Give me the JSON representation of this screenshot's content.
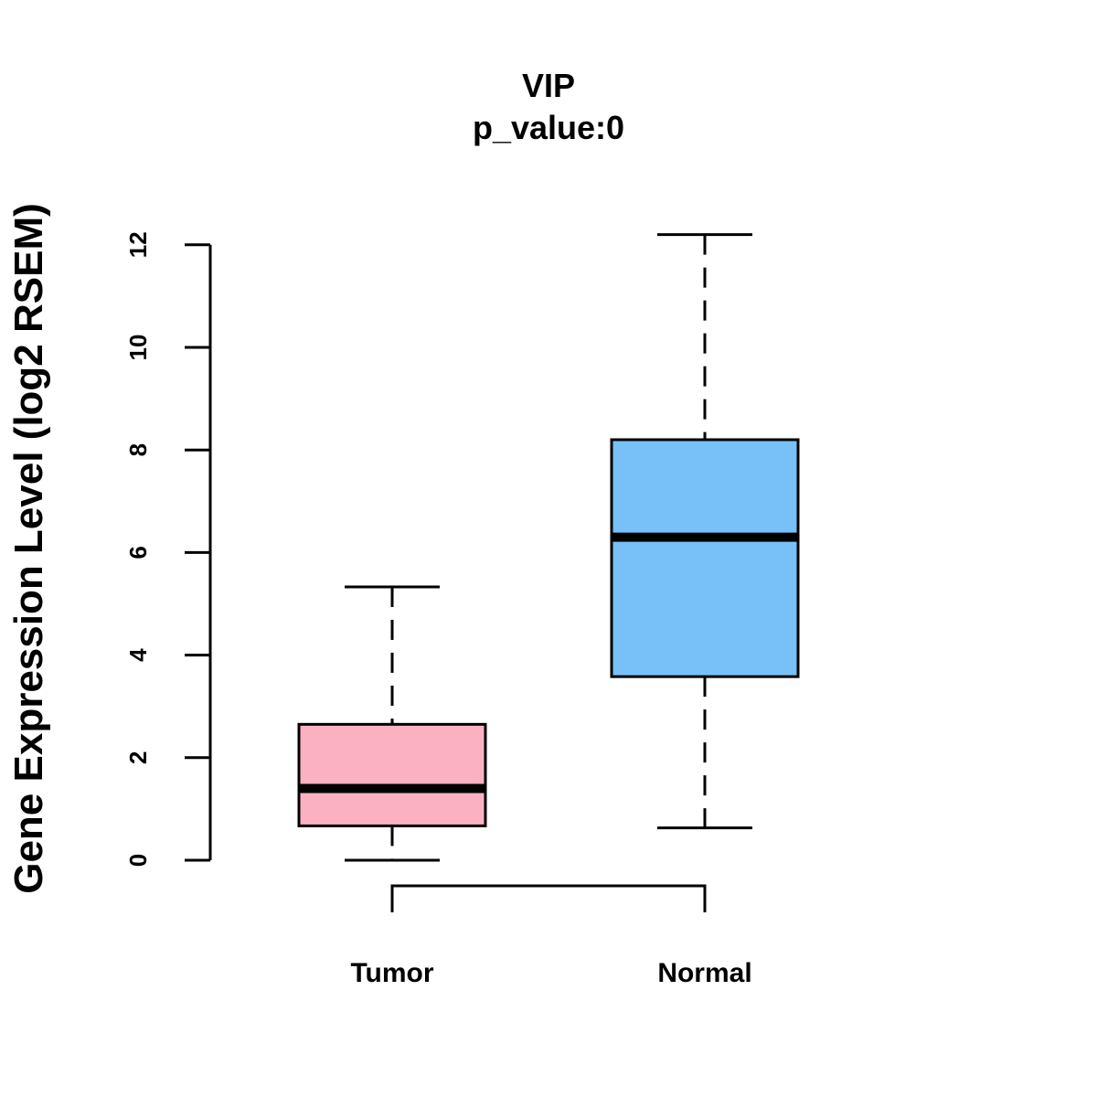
{
  "chart_data": {
    "type": "box",
    "title": "VIP",
    "subtitle": "p_value:0",
    "xlabel": "",
    "ylabel": "Gene Expression Level (log2 RSEM)",
    "ylim": [
      0,
      12.2
    ],
    "yticks": [
      "0",
      "2",
      "4",
      "6",
      "8",
      "10",
      "12"
    ],
    "grid": false,
    "categories": [
      "Tumor",
      "Normal"
    ],
    "boxes": [
      {
        "category": "Tumor",
        "whisker_low": 0.0,
        "q1": 0.67,
        "median": 1.4,
        "q3": 2.65,
        "whisker_high": 5.33,
        "color": "#FBB1C2"
      },
      {
        "category": "Normal",
        "whisker_low": 0.63,
        "q1": 3.58,
        "median": 6.3,
        "q3": 8.2,
        "whisker_high": 12.2,
        "color": "#77C1F8"
      }
    ],
    "comparison_bracket": [
      "Tumor",
      "Normal"
    ]
  }
}
